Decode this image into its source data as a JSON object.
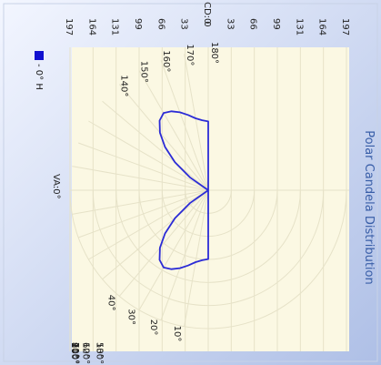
{
  "chart_data": {
    "type": "line",
    "subtype": "polar-candela",
    "title": "Polar Candela Distribution",
    "cd_label": "CD: 0",
    "va_label": "VA:0°",
    "cd_ticks": [
      "197",
      "164",
      "131",
      "99",
      "66",
      "33",
      "0",
      "33",
      "66",
      "99",
      "131",
      "164",
      "197"
    ],
    "angle_labels_left": [
      "10°",
      "20°",
      "30°",
      "40°"
    ],
    "angle_labels_bottom": [
      "50°",
      "60°",
      "70°",
      "80°",
      "90°",
      "100°",
      "110°",
      "120°",
      "130°"
    ],
    "angle_labels_right": [
      "180°",
      "170°",
      "160°",
      "150°",
      "140°"
    ],
    "r_max": 197,
    "legend": {
      "marker_color": "#1010d0",
      "label": "- 0° H"
    },
    "series": [
      {
        "name": "0° H",
        "color": "#2b2bd6",
        "points": [
          [
            0,
            98
          ],
          [
            5,
            100
          ],
          [
            10,
            104
          ],
          [
            15,
            111
          ],
          [
            20,
            118
          ],
          [
            25,
            124
          ],
          [
            30,
            127
          ],
          [
            35,
            121
          ],
          [
            40,
            107
          ],
          [
            45,
            87
          ],
          [
            50,
            62
          ],
          [
            55,
            32
          ],
          [
            60,
            0
          ]
        ]
      }
    ],
    "colors": {
      "plot_bg": "#fbf8e3",
      "grid": "#e6e2c8",
      "axis_label": "#1a1a1a",
      "title": "#3a5fa8"
    }
  }
}
